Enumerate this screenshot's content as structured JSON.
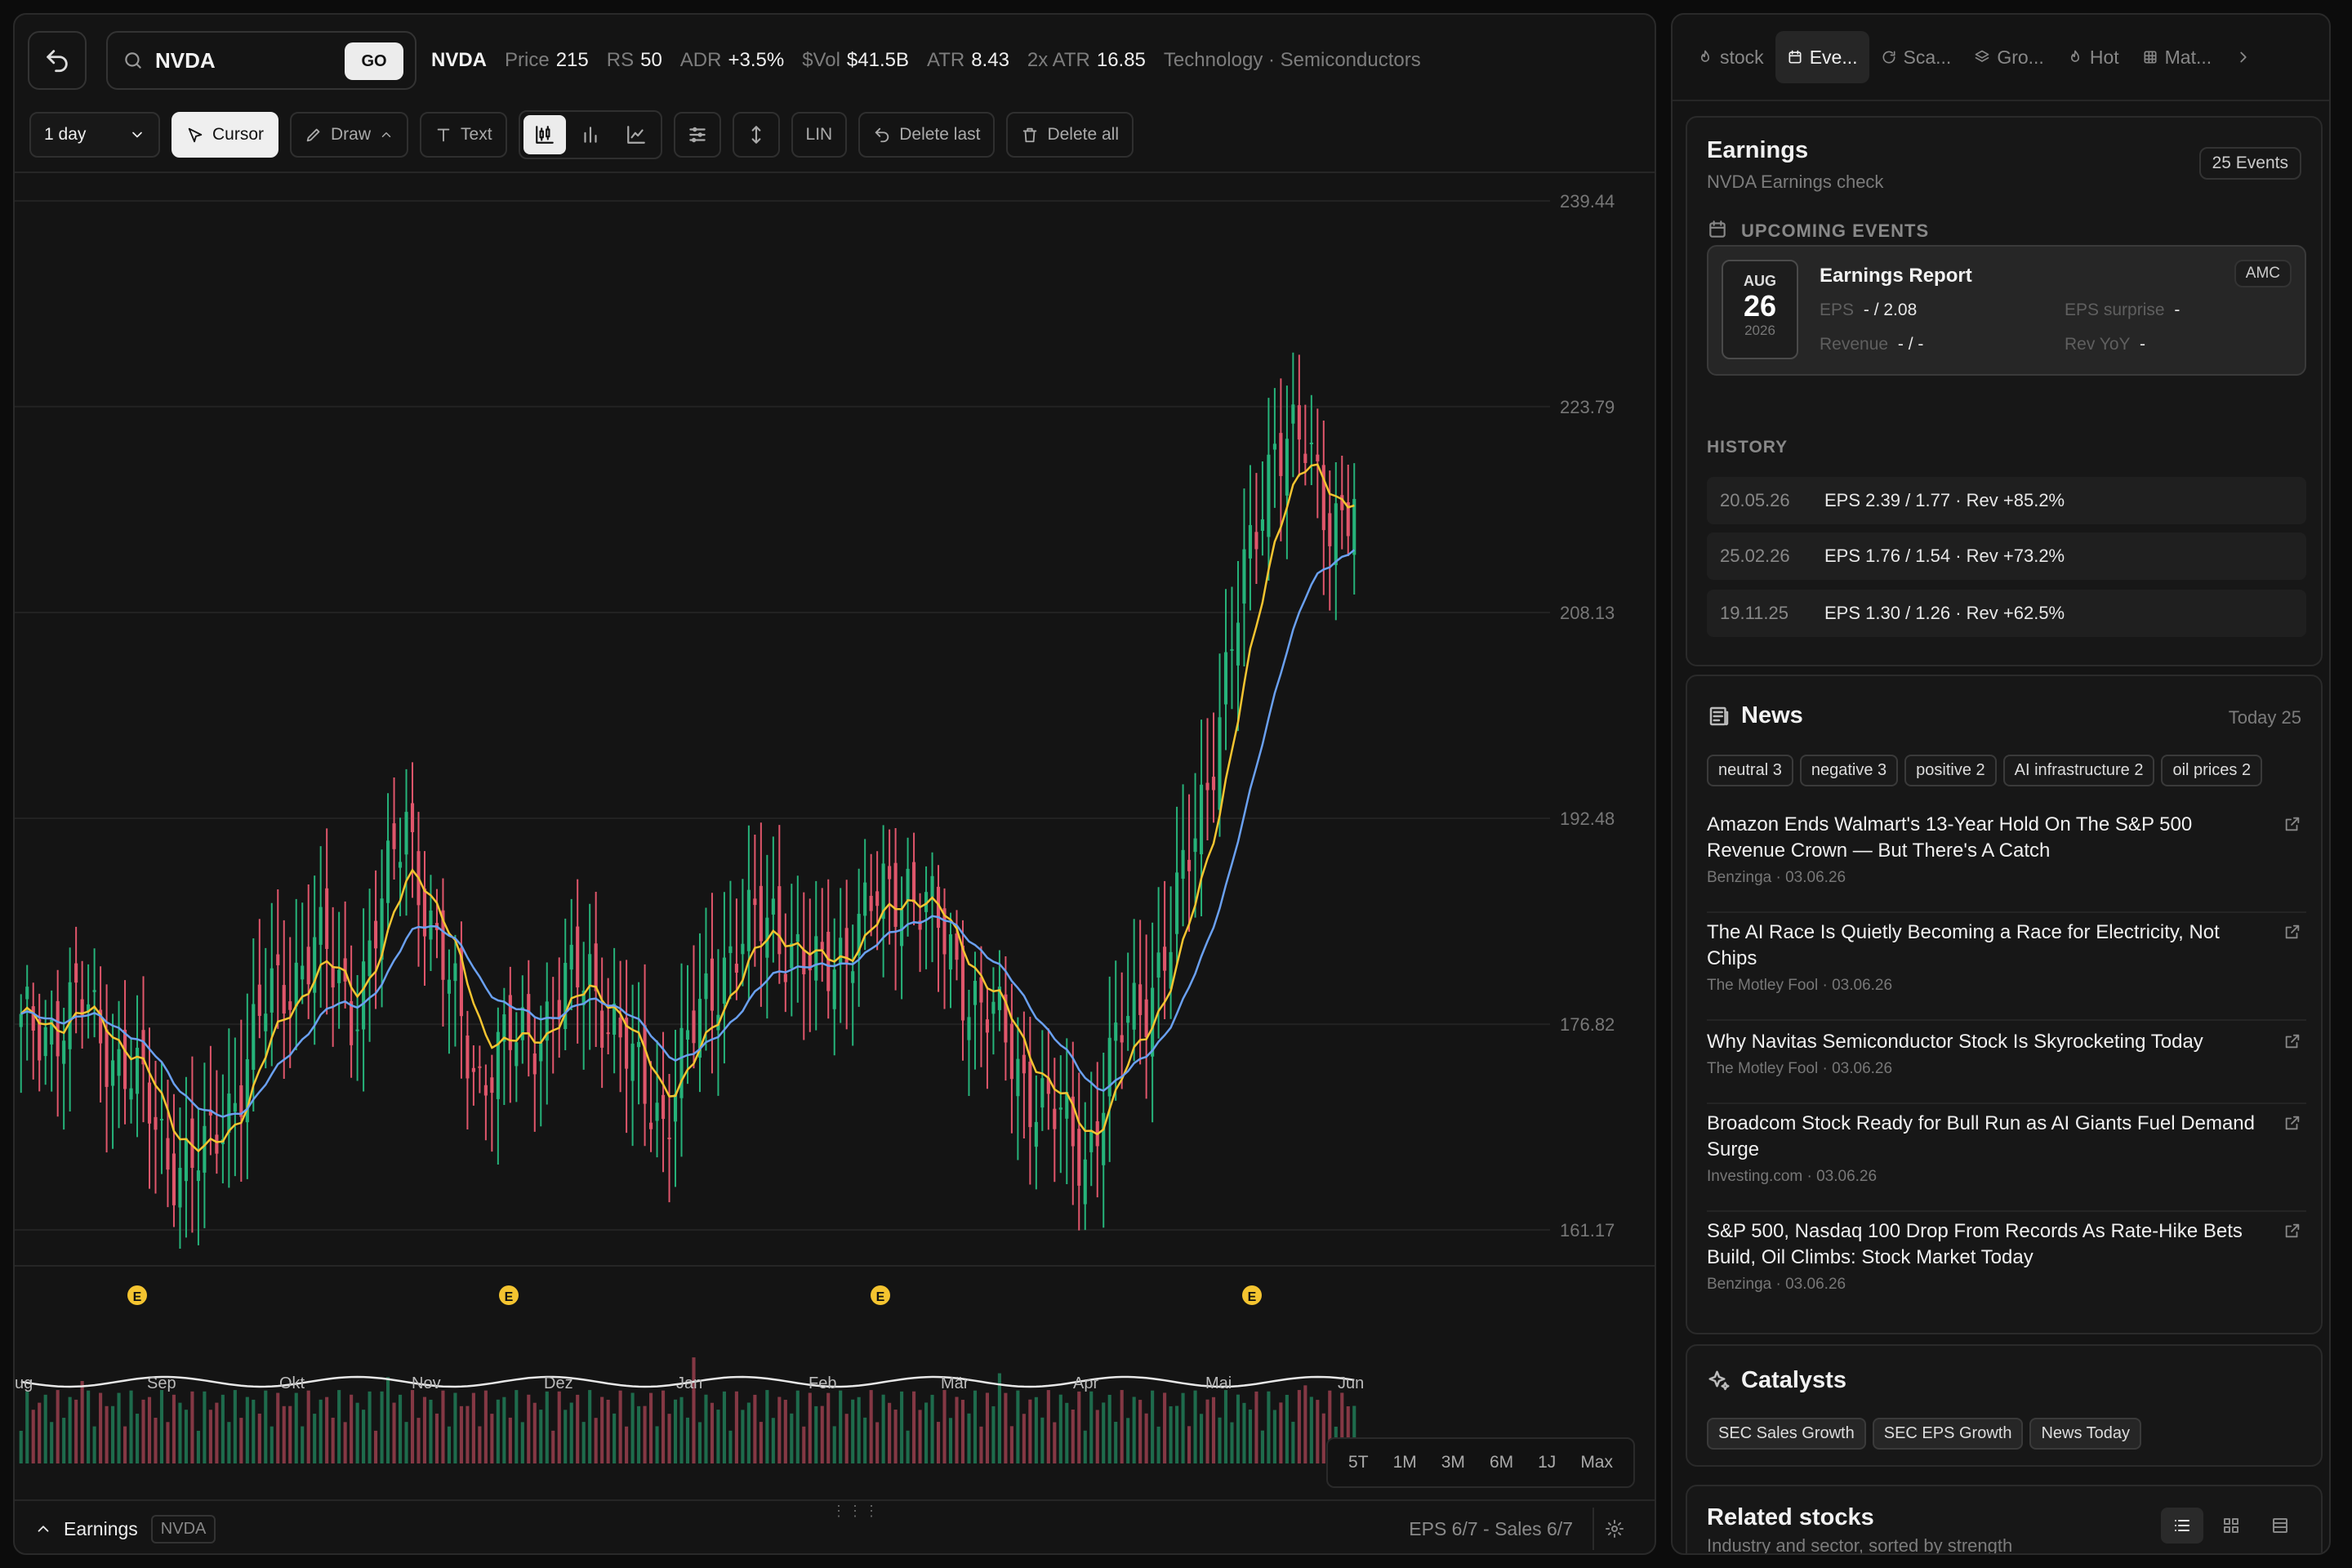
{
  "header": {
    "search_value": "NVDA",
    "go_label": "GO",
    "ticker": "NVDA",
    "stats": [
      {
        "label": "Price",
        "value": "215"
      },
      {
        "label": "RS",
        "value": "50"
      },
      {
        "label": "ADR",
        "value": "+3.5%"
      },
      {
        "label": "$Vol",
        "value": "$41.5B"
      },
      {
        "label": "ATR",
        "value": "8.43"
      },
      {
        "label": "2x ATR",
        "value": "16.85"
      }
    ],
    "sector": "Technology · Semiconductors"
  },
  "toolbar": {
    "interval": "1 day",
    "cursor": "Cursor",
    "draw": "Draw",
    "text": "Text",
    "scale": "LIN",
    "delete_last": "Delete last",
    "delete_all": "Delete all"
  },
  "chart_data": {
    "type": "candlestick",
    "symbol": "NVDA",
    "y_ticks": [
      "239.44",
      "223.79",
      "208.13",
      "192.48",
      "176.82",
      "161.17"
    ],
    "ylim": [
      161.17,
      239.44
    ],
    "x_ticks": [
      "ug",
      "Sep",
      "Okt",
      "Nov",
      "Dez",
      "Jan",
      "Feb",
      "Mär",
      "Apr",
      "Mai",
      "Jun"
    ],
    "earnings_markers": [
      "E",
      "E",
      "E",
      "E"
    ],
    "close_anchors": [
      [
        0,
        176
      ],
      [
        10,
        178
      ],
      [
        18,
        173
      ],
      [
        24,
        167
      ],
      [
        30,
        166
      ],
      [
        40,
        178
      ],
      [
        48,
        183
      ],
      [
        54,
        178
      ],
      [
        60,
        187
      ],
      [
        63,
        193
      ],
      [
        68,
        182
      ],
      [
        75,
        173
      ],
      [
        85,
        177
      ],
      [
        93,
        181
      ],
      [
        100,
        173
      ],
      [
        105,
        170
      ],
      [
        115,
        182
      ],
      [
        123,
        185
      ],
      [
        130,
        180
      ],
      [
        136,
        184
      ],
      [
        145,
        188
      ],
      [
        152,
        182
      ],
      [
        160,
        176
      ],
      [
        168,
        170
      ],
      [
        174,
        167
      ],
      [
        180,
        176
      ],
      [
        188,
        183
      ],
      [
        194,
        196
      ],
      [
        200,
        210
      ],
      [
        205,
        222
      ],
      [
        210,
        220
      ],
      [
        214,
        216
      ],
      [
        218,
        216
      ]
    ],
    "series": [
      {
        "name": "EMA fast",
        "color": "#f4c430"
      },
      {
        "name": "EMA slow",
        "color": "#6aa0f0"
      }
    ]
  },
  "range_buttons": [
    "5T",
    "1M",
    "3M",
    "6M",
    "1J",
    "Max"
  ],
  "footer": {
    "label": "Earnings",
    "tag": "NVDA",
    "info": "EPS 6/7 - Sales 6/7"
  },
  "tabs": [
    {
      "label": "stock",
      "icon": "flame-icon"
    },
    {
      "label": "Eve...",
      "icon": "calendar-icon",
      "active": true
    },
    {
      "label": "Sca...",
      "icon": "scan-icon"
    },
    {
      "label": "Gro...",
      "icon": "layers-icon"
    },
    {
      "label": "Hot",
      "icon": "flame-icon"
    },
    {
      "label": "Mat...",
      "icon": "grid-icon"
    }
  ],
  "earnings": {
    "title": "Earnings",
    "subtitle": "NVDA Earnings check",
    "count": "25 Events",
    "upcoming_heading": "UPCOMING EVENTS",
    "upcoming": {
      "month": "AUG",
      "day": "26",
      "year": "2026",
      "title": "Earnings Report",
      "badge": "AMC",
      "eps_label": "EPS",
      "eps_value": "- / 2.08",
      "surprise_label": "EPS surprise",
      "surprise_value": "-",
      "rev_label": "Revenue",
      "rev_value": "- / -",
      "yoy_label": "Rev YoY",
      "yoy_value": "-"
    },
    "history_heading": "HISTORY",
    "history": [
      {
        "date": "20.05.26",
        "text": "EPS 2.39 / 1.77 · Rev +85.2%"
      },
      {
        "date": "25.02.26",
        "text": "EPS 1.76 / 1.54 · Rev +73.2%"
      },
      {
        "date": "19.11.25",
        "text": "EPS 1.30 / 1.26 · Rev +62.5%"
      }
    ]
  },
  "news": {
    "title": "News",
    "today": "Today 25",
    "tags": [
      "neutral 3",
      "negative 3",
      "positive 2",
      "AI infrastructure 2",
      "oil prices 2"
    ],
    "items": [
      {
        "title": "Amazon Ends Walmart's 13-Year Hold On The S&P 500 Revenue Crown — But There's A Catch",
        "source": "Benzinga · 03.06.26"
      },
      {
        "title": "The AI Race Is Quietly Becoming a Race for Electricity, Not Chips",
        "source": "The Motley Fool · 03.06.26"
      },
      {
        "title": "Why Navitas Semiconductor Stock Is Skyrocketing Today",
        "source": "The Motley Fool · 03.06.26"
      },
      {
        "title": "Broadcom Stock Ready for Bull Run as AI Giants Fuel Demand Surge",
        "source": "Investing.com · 03.06.26"
      },
      {
        "title": "S&P 500, Nasdaq 100 Drop From Records As Rate-Hike Bets Build, Oil Climbs: Stock Market Today",
        "source": "Benzinga · 03.06.26"
      }
    ]
  },
  "catalysts": {
    "title": "Catalysts",
    "tags": [
      "SEC Sales Growth",
      "SEC EPS Growth",
      "News Today"
    ]
  },
  "related": {
    "title": "Related stocks",
    "subtitle": "Industry and sector, sorted by strength"
  },
  "colors": {
    "up": "#26b37a",
    "down": "#e0566b",
    "ema_fast": "#f4c430",
    "ema_slow": "#6aa0f0",
    "earnings_marker": "#f4c430"
  }
}
